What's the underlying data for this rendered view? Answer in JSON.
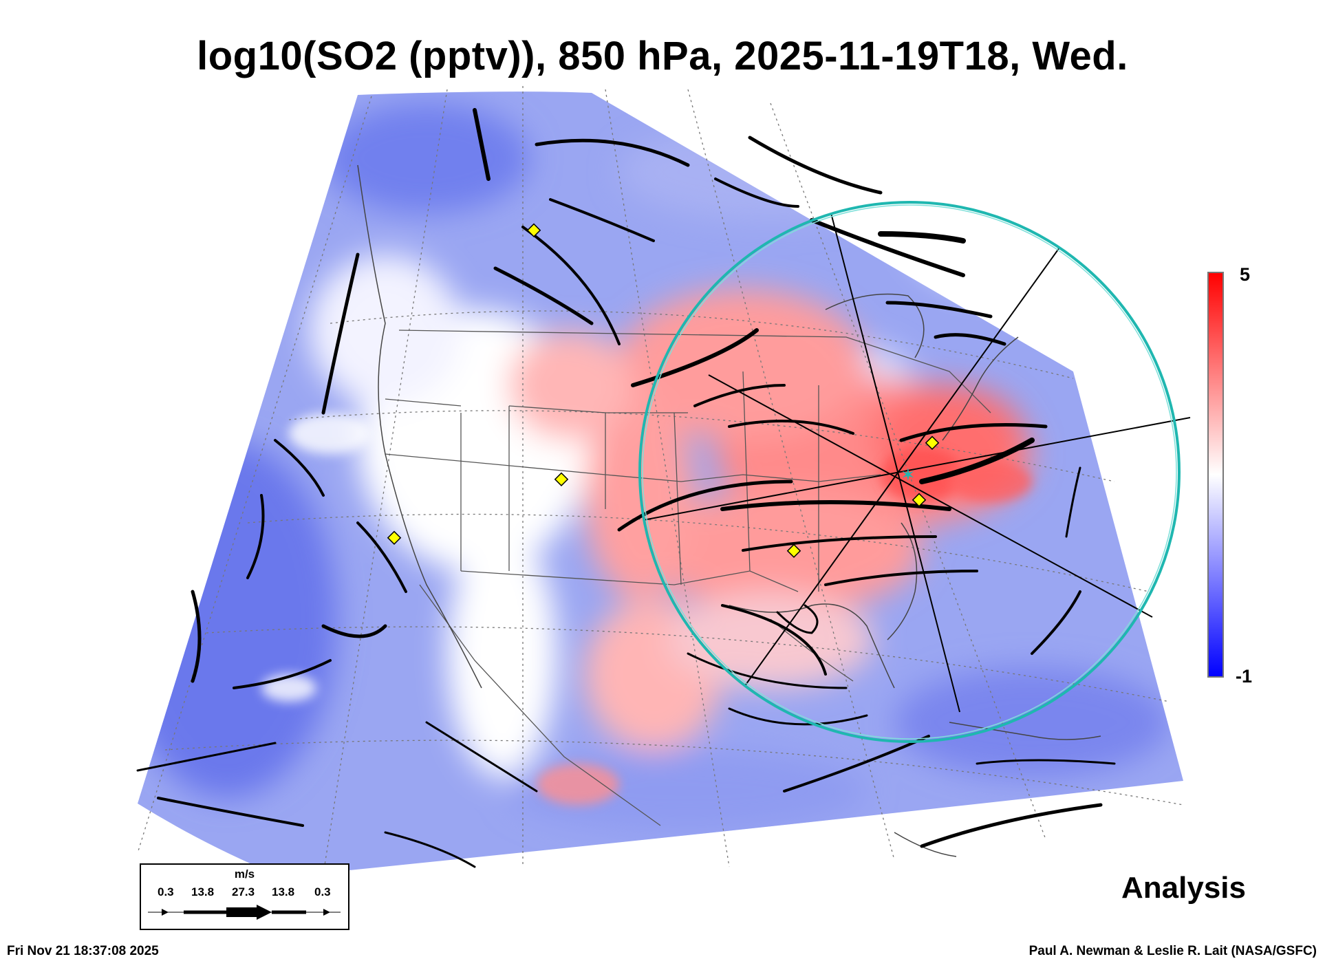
{
  "title": "log10(SO2 (pptv)), 850 hPa, 2025-11-19T18, Wed.",
  "colorbar": {
    "max_label": "5",
    "min_label": "-1",
    "colors": [
      "#0000ff",
      "#ffffff",
      "#ff0000"
    ]
  },
  "analysis_label": "Analysis",
  "footer": {
    "timestamp": "Fri Nov 21 18:37:08 2025",
    "credit": "Paul A. Newman & Leslie R. Lait (NASA/GSFC)"
  },
  "wind_legend": {
    "unit": "m/s",
    "ticks": [
      "0.3",
      "13.8",
      "27.3",
      "13.8",
      "0.3"
    ]
  },
  "map": {
    "marker_color": "#ffff00",
    "circle_color": "#20b2aa",
    "high_color": "#ff6e6e",
    "low_color": "#6e78f0",
    "streamline_color": "#000000"
  }
}
